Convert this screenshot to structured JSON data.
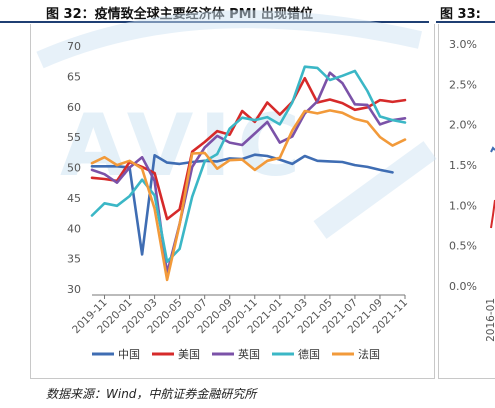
{
  "header": {
    "figure_title": "图 32：疫情致全球主要经济体 PMI 出现错位",
    "figure_title_next": "图 33:"
  },
  "source": "数据来源：Wind，中航证券金融研究所",
  "watermark": "AVIC",
  "colors": {
    "china": "#3f6db3",
    "us": "#d62a2a",
    "uk": "#7b52a8",
    "germany": "#3bb7c6",
    "france": "#f29a3a",
    "rule": "#1f3f73",
    "watermark": "#cfe4f4"
  },
  "chart_data": [
    {
      "type": "line",
      "title": "",
      "xlabel": "",
      "ylabel": "",
      "ylim": [
        30,
        70
      ],
      "yticks": [
        "30",
        "35",
        "40",
        "45",
        "50",
        "55",
        "60",
        "65",
        "70"
      ],
      "xtick_labels": [
        "2019-11",
        "2020-01",
        "2020-03",
        "2020-05",
        "2020-07",
        "2020-09",
        "2020-11",
        "2021-01",
        "2021-03",
        "2021-05",
        "2021-07",
        "2021-09",
        "2021-11"
      ],
      "x": [
        "2019-10",
        "2019-11",
        "2019-12",
        "2020-01",
        "2020-02",
        "2020-03",
        "2020-04",
        "2020-05",
        "2020-06",
        "2020-07",
        "2020-08",
        "2020-09",
        "2020-10",
        "2020-11",
        "2020-12",
        "2021-01",
        "2021-02",
        "2021-03",
        "2021-04",
        "2021-05",
        "2021-06",
        "2021-07",
        "2021-08",
        "2021-09",
        "2021-10",
        "2021-11"
      ],
      "grid": false,
      "legend_position": "bottom",
      "series": [
        {
          "name": "中国",
          "color_key": "china",
          "values": [
            50.2,
            50.2,
            50.2,
            50.0,
            35.7,
            52.0,
            50.8,
            50.6,
            50.9,
            51.1,
            51.0,
            51.5,
            51.4,
            52.1,
            51.9,
            51.3,
            50.6,
            51.9,
            51.1,
            51.0,
            50.9,
            50.4,
            50.1,
            49.6,
            49.2,
            null
          ]
        },
        {
          "name": "美国",
          "color_key": "us",
          "values": [
            48.3,
            48.1,
            47.8,
            50.9,
            50.1,
            49.1,
            41.5,
            43.1,
            52.6,
            54.2,
            56.0,
            55.4,
            59.3,
            57.5,
            60.7,
            58.7,
            60.8,
            64.7,
            60.7,
            61.2,
            60.6,
            59.5,
            59.9,
            61.1,
            60.8,
            61.1
          ]
        },
        {
          "name": "英国",
          "color_key": "uk",
          "values": [
            49.6,
            48.9,
            47.5,
            50.0,
            51.7,
            47.8,
            32.6,
            40.7,
            50.1,
            53.3,
            55.2,
            54.1,
            53.7,
            55.6,
            57.5,
            54.1,
            55.1,
            58.9,
            60.9,
            65.6,
            63.9,
            60.4,
            60.3,
            57.1,
            57.8,
            58.1
          ]
        },
        {
          "name": "德国",
          "color_key": "germany",
          "values": [
            42.1,
            44.1,
            43.7,
            45.3,
            48.0,
            45.4,
            34.5,
            36.6,
            45.2,
            51.0,
            52.2,
            56.4,
            58.2,
            57.8,
            58.3,
            57.1,
            60.7,
            66.6,
            66.4,
            64.4,
            65.1,
            65.9,
            62.6,
            58.4,
            57.8,
            57.4
          ]
        },
        {
          "name": "法国",
          "color_key": "france",
          "values": [
            50.7,
            51.7,
            50.4,
            51.1,
            49.8,
            43.2,
            31.5,
            40.6,
            52.3,
            52.4,
            49.8,
            51.2,
            51.3,
            49.6,
            51.1,
            51.6,
            56.1,
            59.3,
            58.9,
            59.4,
            59.0,
            58.0,
            57.5,
            55.0,
            53.6,
            54.6
          ]
        }
      ]
    },
    {
      "type": "line",
      "title": "",
      "ylim": [
        0.0,
        3.0
      ],
      "yticks": [
        "0.0%",
        "0.5%",
        "1.0%",
        "1.5%",
        "2.0%",
        "2.5%",
        "3.0%"
      ],
      "xtick_labels": [
        "2016-01"
      ],
      "series": []
    }
  ]
}
